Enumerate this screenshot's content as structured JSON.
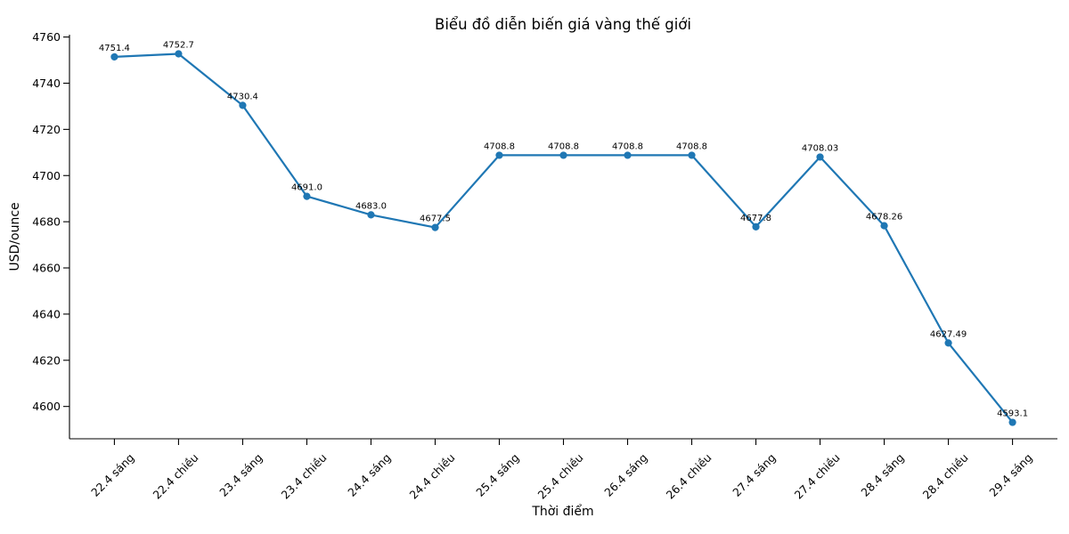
{
  "chart_data": {
    "type": "line",
    "title": "Biểu đồ diễn biến giá vàng thế giới",
    "xlabel": "Thời điểm",
    "ylabel": "USD/ounce",
    "categories": [
      "22.4 sáng",
      "22.4 chiều",
      "23.4 sáng",
      "23.4 chiều",
      "24.4 sáng",
      "24.4 chiều",
      "25.4 sáng",
      "25.4 chiều",
      "26.4 sáng",
      "26.4 chiều",
      "27.4 sáng",
      "27.4 chiều",
      "28.4 sáng",
      "28.4 chiều",
      "29.4 sáng"
    ],
    "values": [
      4751.4,
      4752.7,
      4730.4,
      4691.0,
      4683.0,
      4677.5,
      4708.8,
      4708.8,
      4708.8,
      4708.8,
      4677.8,
      4708.03,
      4678.26,
      4627.49,
      4593.1
    ],
    "point_labels": [
      "4751.4",
      "4752.7",
      "4730.4",
      "4691.0",
      "4683.0",
      "4677.5",
      "4708.8",
      "4708.8",
      "4708.8",
      "4708.8",
      "4677.8",
      "4708.03",
      "4678.26",
      "4627.49",
      "4593.1"
    ],
    "yticks": [
      4600,
      4620,
      4640,
      4660,
      4680,
      4700,
      4720,
      4740,
      4760
    ],
    "ylim": [
      4586,
      4761
    ],
    "grid": false,
    "legend": "none",
    "spines": [
      "left",
      "bottom"
    ],
    "line_color": "#1f77b4",
    "marker": "circle",
    "marker_color": "#1f77b4",
    "text_color": "#000000",
    "background": "#ffffff"
  }
}
